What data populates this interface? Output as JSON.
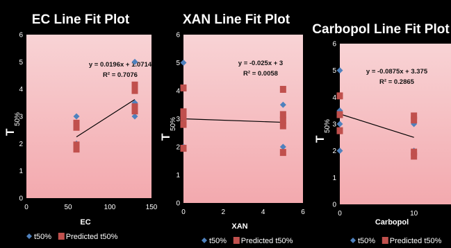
{
  "colors": {
    "background": "#000000",
    "plot_top": "#f8d3d5",
    "plot_bottom": "#f3a9ae",
    "actual": "#4f81bd",
    "predicted": "#c0504d",
    "fit_line": "#000000"
  },
  "chart_data": [
    {
      "type": "scatter",
      "title": "EC Line Fit  Plot",
      "xlabel": "EC",
      "ylabel": "T",
      "ylabel_subscript": "50%",
      "xlim": [
        0,
        150
      ],
      "ylim": [
        0,
        6
      ],
      "xticks": [
        0,
        50,
        100,
        150
      ],
      "yticks": [
        0,
        1,
        2,
        3,
        4,
        5,
        6
      ],
      "equation": "y = 0.0196x + 1.0714",
      "r_squared": "R² = 0.7076",
      "fit": {
        "slope": 0.0196,
        "intercept": 1.0714,
        "x_range": [
          60,
          130
        ]
      },
      "series": [
        {
          "name": "t50%",
          "marker": "diamond",
          "points": [
            [
              60,
              3.0
            ],
            [
              60,
              2.0
            ],
            [
              130,
              5.0
            ],
            [
              130,
              3.5
            ],
            [
              130,
              3.0
            ]
          ]
        },
        {
          "name": "Predicted t50%",
          "marker": "square",
          "points": [
            [
              60,
              2.75
            ],
            [
              60,
              2.6
            ],
            [
              60,
              1.95
            ],
            [
              60,
              1.8
            ],
            [
              130,
              4.15
            ],
            [
              130,
              3.95
            ],
            [
              130,
              3.35
            ],
            [
              130,
              3.2
            ]
          ]
        }
      ]
    },
    {
      "type": "scatter",
      "title": "XAN Line Fit  Plot",
      "xlabel": "XAN",
      "ylabel": "T",
      "ylabel_subscript": "50%",
      "xlim": [
        0,
        6
      ],
      "ylim": [
        0,
        6
      ],
      "xticks": [
        0,
        2,
        4,
        6
      ],
      "yticks": [
        0,
        1,
        2,
        3,
        4,
        5,
        6
      ],
      "equation": "y = -0.025x + 3",
      "r_squared": "R² = 0.0058",
      "fit": {
        "slope": -0.025,
        "intercept": 3,
        "x_range": [
          0,
          5
        ]
      },
      "series": [
        {
          "name": "t50%",
          "marker": "diamond",
          "points": [
            [
              0,
              5.0
            ],
            [
              0,
              3.0
            ],
            [
              0,
              2.0
            ],
            [
              5,
              3.5
            ],
            [
              5,
              3.0
            ],
            [
              5,
              2.0
            ]
          ]
        },
        {
          "name": "Predicted t50%",
          "marker": "square",
          "points": [
            [
              0,
              4.1
            ],
            [
              0,
              3.25
            ],
            [
              0,
              3.05
            ],
            [
              0,
              2.8
            ],
            [
              0,
              1.95
            ],
            [
              5,
              4.05
            ],
            [
              5,
              3.15
            ],
            [
              5,
              2.95
            ],
            [
              5,
              2.75
            ],
            [
              5,
              1.8
            ]
          ]
        }
      ]
    },
    {
      "type": "scatter",
      "title": "Carbopol Line Fit  Plot",
      "xlabel": "Carbopol",
      "ylabel": "T",
      "ylabel_subscript": "50%",
      "xlim": [
        0,
        15
      ],
      "ylim": [
        0,
        6
      ],
      "xticks": [
        0,
        10
      ],
      "xtick_labels": [
        "0",
        "10"
      ],
      "yticks": [
        0,
        1,
        2,
        3,
        4,
        5,
        6
      ],
      "equation": "y = -0.0875x + 3.375",
      "r_squared": "R² = 0.2865",
      "fit": {
        "slope": -0.0875,
        "intercept": 3.375,
        "x_range": [
          0,
          10
        ]
      },
      "series": [
        {
          "name": "t50%",
          "marker": "diamond",
          "points": [
            [
              0,
              5.0
            ],
            [
              0,
              3.5
            ],
            [
              0,
              3.0
            ],
            [
              0,
              2.0
            ],
            [
              10,
              3.0
            ],
            [
              10,
              2.0
            ]
          ]
        },
        {
          "name": "Predicted t50%",
          "marker": "square",
          "points": [
            [
              0,
              4.05
            ],
            [
              0,
              3.35
            ],
            [
              0,
              2.75
            ],
            [
              10,
              3.3
            ],
            [
              10,
              3.15
            ],
            [
              10,
              1.95
            ],
            [
              10,
              1.8
            ]
          ]
        }
      ]
    }
  ]
}
